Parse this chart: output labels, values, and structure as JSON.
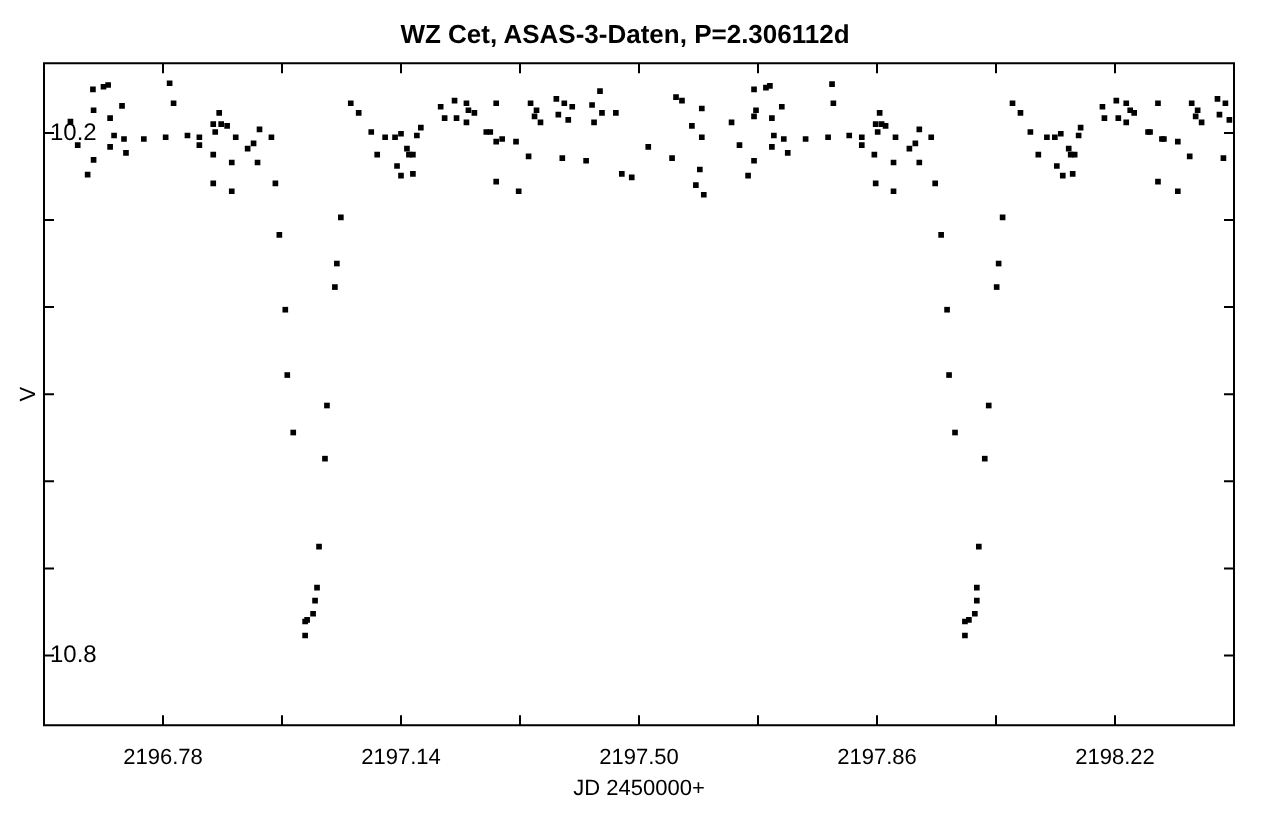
{
  "chart_data": {
    "type": "scatter",
    "title": "WZ Cet, ASAS-3-Daten, P=2.306112d",
    "xlabel": "JD 2450000+",
    "ylabel": "V",
    "color": "#000000",
    "marker": "square",
    "xlim": [
      2196.6,
      2198.4
    ],
    "ylim": [
      10.88,
      10.12
    ],
    "xticks": [
      2196.78,
      {
        "value": 2196.96,
        "label": null
      },
      2197.14,
      {
        "value": 2197.32,
        "label": null
      },
      {
        "value": 2197.5,
        "label": "2197.50"
      },
      {
        "value": 2197.68,
        "label": null
      },
      2197.86,
      {
        "value": 2198.04,
        "label": null
      },
      2198.22
    ],
    "yticks": [
      10.2,
      {
        "value": 10.3,
        "label": null
      },
      {
        "value": 10.4,
        "label": null
      },
      {
        "value": 10.5,
        "label": null
      },
      {
        "value": 10.6,
        "label": null
      },
      {
        "value": 10.7,
        "label": null
      },
      10.8
    ],
    "x": [
      2196.64,
      2196.651,
      2196.666,
      2196.674,
      2196.675,
      2196.675,
      2196.69,
      2196.697,
      2196.7,
      2196.7,
      2196.706,
      2196.718,
      2196.721,
      2196.724,
      2196.751,
      2196.784,
      2196.79,
      2196.796,
      2196.817,
      2196.835,
      2196.835,
      2196.856,
      2196.859,
      2196.856,
      2196.856,
      2196.865,
      2196.868,
      2196.877,
      2196.884,
      2196.884,
      2196.89,
      2196.908,
      2196.917,
      2196.923,
      2196.926,
      2196.944,
      2196.95,
      2196.956,
      2196.965,
      2196.968,
      2196.977,
      2196.995,
      2196.995,
      2196.998,
      2197.007,
      2197.01,
      2197.013,
      2197.016,
      2197.025,
      2197.028,
      2197.04,
      2197.043,
      2197.049,
      2197.064,
      2197.076,
      2197.095,
      2197.104,
      2197.116,
      2197.131,
      2197.134,
      2197.14,
      2197.14,
      2197.149,
      2197.152,
      2197.158,
      2197.158,
      2197.164,
      2197.17,
      2197.2,
      2197.206,
      2197.221,
      2197.224,
      2197.239,
      2197.239,
      2197.242,
      2197.251,
      2197.269,
      2197.275,
      2197.284,
      2197.284,
      2197.284,
      2197.293,
      2197.314,
      2197.318,
      2197.333,
      2197.336,
      2197.342,
      2197.345,
      2197.351,
      2197.375,
      2197.378,
      2197.384,
      2197.387,
      2197.393,
      2197.399,
      2197.42,
      2197.429,
      2197.432,
      2197.441,
      2197.444,
      2197.465,
      2197.474,
      2197.489,
      2197.514,
      2197.55,
      2197.556,
      2197.565,
      2197.58,
      2197.586,
      2197.592,
      2197.595,
      2197.595,
      2197.598,
      2197.64,
      2197.652,
      2197.665,
      2197.674,
      2197.674,
      2197.674,
      2197.677,
      2197.692,
      2197.698,
      2197.701,
      2197.701,
      2197.704,
      2197.716,
      2197.719,
      2197.725,
      2197.752,
      2197.786,
      2197.792,
      2197.794,
      2197.818,
      2197.837,
      2197.837,
      2197.856,
      2197.858,
      2197.858,
      2197.861,
      2197.864,
      2197.867,
      2197.873,
      2197.885,
      2197.885,
      2197.888,
      2197.909,
      2197.918,
      2197.924,
      2197.924,
      2197.942,
      2197.948,
      2197.957,
      2197.966,
      2197.969,
      2197.978,
      2197.993,
      2197.993,
      2197.999,
      2198.008,
      2198.011,
      2198.011,
      2198.014,
      2198.023,
      2198.029,
      2198.041,
      2198.044,
      2198.05,
      2198.065,
      2198.077,
      2198.092,
      2198.104,
      2198.117,
      2198.129,
      2198.132,
      2198.138,
      2198.141,
      2198.15,
      2198.153,
      2198.159,
      2198.156,
      2198.165,
      2198.168,
      2198.201,
      2198.204,
      2198.222,
      2198.225,
      2198.237,
      2198.237,
      2198.243,
      2198.249,
      2198.27,
      2198.273,
      2198.285,
      2198.285,
      2198.291,
      2198.294,
      2198.315,
      2198.315,
      2198.333,
      2198.336,
      2198.342,
      2198.345,
      2198.351,
      2198.375,
      2198.378,
      2198.384,
      2198.387,
      2198.393
    ],
    "values": [
      10.187,
      10.214,
      10.248,
      10.15,
      10.174,
      10.231,
      10.147,
      10.145,
      10.183,
      10.216,
      10.203,
      10.169,
      10.207,
      10.223,
      10.207,
      10.205,
      10.143,
      10.166,
      10.203,
      10.205,
      10.214,
      10.19,
      10.199,
      10.225,
      10.258,
      10.177,
      10.19,
      10.192,
      10.234,
      10.267,
      10.205,
      10.218,
      10.212,
      10.234,
      10.196,
      10.205,
      10.258,
      10.317,
      10.403,
      10.478,
      10.544,
      10.777,
      10.761,
      10.759,
      10.752,
      10.737,
      10.722,
      10.675,
      10.574,
      10.513,
      10.377,
      10.35,
      10.297,
      10.166,
      10.177,
      10.199,
      10.225,
      10.205,
      10.205,
      10.238,
      10.201,
      10.249,
      10.218,
      10.225,
      10.225,
      10.247,
      10.203,
      10.194,
      10.17,
      10.183,
      10.163,
      10.183,
      10.166,
      10.188,
      10.174,
      10.177,
      10.199,
      10.199,
      10.166,
      10.21,
      10.256,
      10.207,
      10.21,
      10.267,
      10.227,
      10.166,
      10.181,
      10.174,
      10.188,
      10.161,
      10.179,
      10.229,
      10.166,
      10.185,
      10.17,
      10.232,
      10.168,
      10.188,
      10.152,
      10.177,
      10.177,
      10.247,
      10.251,
      10.216,
      10.229,
      10.159,
      10.163,
      10.192,
      10.26,
      10.242,
      10.172,
      10.205,
      10.271,
      10.188,
      10.214,
      10.249,
      10.15,
      10.181,
      10.232,
      10.174,
      10.148,
      10.146,
      10.183,
      10.216,
      10.203,
      10.17,
      10.207,
      10.223,
      10.207,
      10.205,
      10.144,
      10.166,
      10.203,
      10.205,
      10.214,
      10.225,
      10.19,
      10.258,
      10.199,
      10.177,
      10.19,
      10.192,
      10.234,
      10.267,
      10.205,
      10.218,
      10.212,
      10.196,
      10.234,
      10.205,
      10.258,
      10.317,
      10.403,
      10.478,
      10.544,
      10.777,
      10.761,
      10.759,
      10.752,
      10.737,
      10.722,
      10.675,
      10.574,
      10.513,
      10.377,
      10.35,
      10.297,
      10.166,
      10.177,
      10.199,
      10.225,
      10.205,
      10.205,
      10.238,
      10.201,
      10.249,
      10.218,
      10.225,
      10.225,
      10.247,
      10.203,
      10.194,
      10.17,
      10.183,
      10.163,
      10.183,
      10.166,
      10.188,
      10.174,
      10.177,
      10.199,
      10.199,
      10.166,
      10.256,
      10.207,
      10.207,
      10.21,
      10.267,
      10.227,
      10.166,
      10.181,
      10.174,
      10.188,
      10.161,
      10.179,
      10.229,
      10.166,
      10.185
    ]
  }
}
